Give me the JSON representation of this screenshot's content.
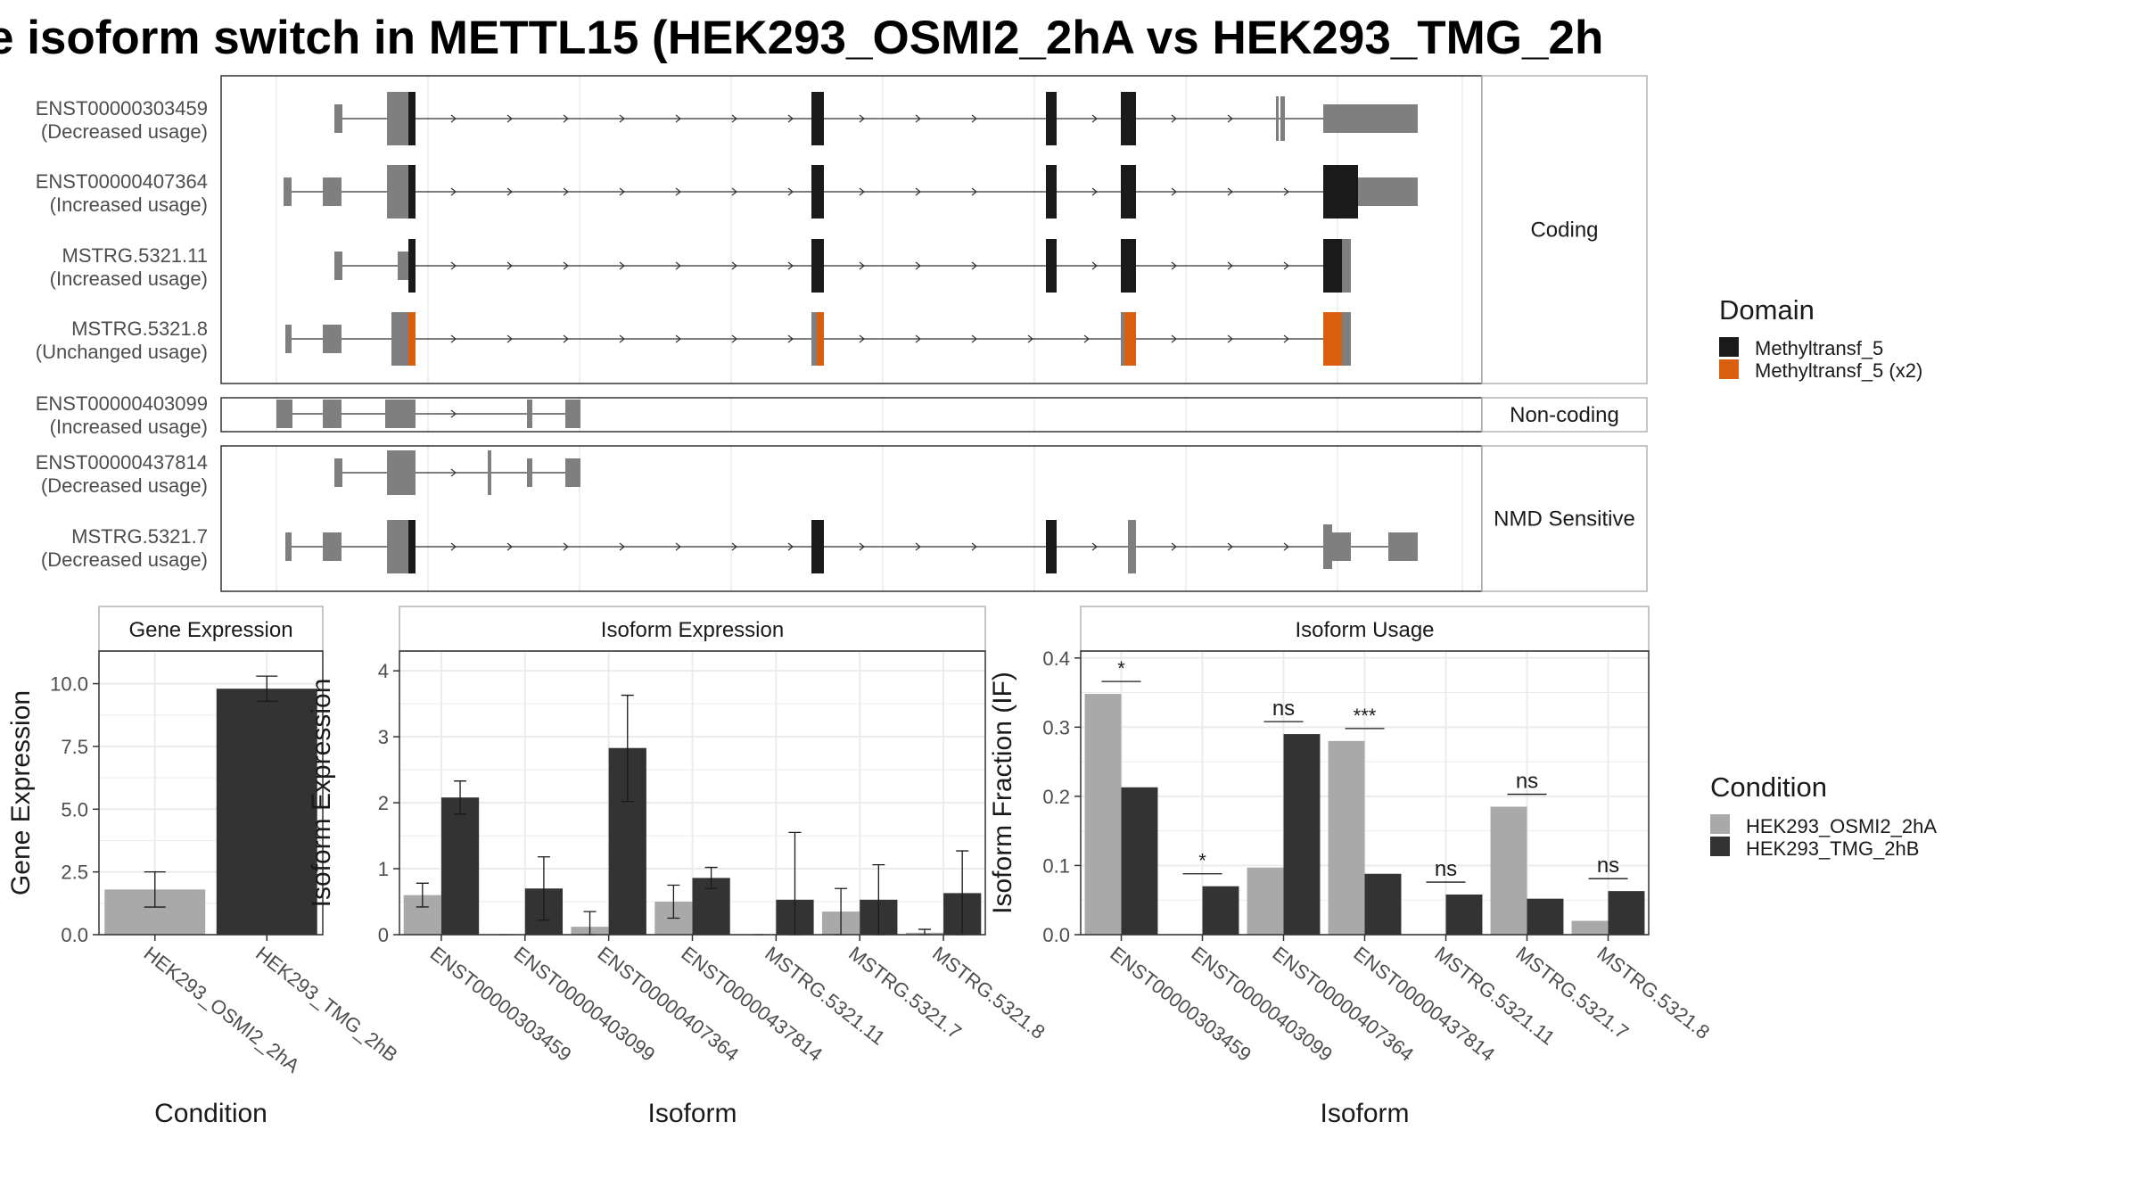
{
  "title": "e isoform switch in METTL15 (HEK293_OSMI2_2hA vs HEK293_TMG_2h",
  "colors": {
    "condition_a": "#a9a9a9",
    "condition_b": "#333333",
    "domain_methyltransf": "#1a1a1a",
    "domain_methyltransf_x2": "#d95f0e",
    "exon": "#7f7f7f",
    "grid": "#ebebeb",
    "panel_border": "#333333",
    "strip_border": "#b3b3b3"
  },
  "structure_panel": {
    "groups": [
      {
        "label": "Coding",
        "isoforms": [
          {
            "name": "ENST00000303459",
            "status": "(Decreased usage)"
          },
          {
            "name": "ENST00000407364",
            "status": "(Increased usage)"
          },
          {
            "name": "MSTRG.5321.11",
            "status": "(Increased usage)"
          },
          {
            "name": "MSTRG.5321.8",
            "status": "(Unchanged usage)"
          }
        ]
      },
      {
        "label": "Non-coding",
        "isoforms": [
          {
            "name": "ENST00000403099",
            "status": "(Increased usage)"
          }
        ]
      },
      {
        "label": "NMD Sensitive",
        "isoforms": [
          {
            "name": "ENST00000437814",
            "status": "(Decreased usage)"
          },
          {
            "name": "MSTRG.5321.7",
            "status": "(Decreased usage)"
          }
        ]
      }
    ],
    "domain_legend": {
      "title": "Domain",
      "entries": [
        {
          "label": "Methyltransf_5",
          "color": "#1a1a1a"
        },
        {
          "label": "Methyltransf_5 (x2)",
          "color": "#d95f0e"
        }
      ]
    }
  },
  "condition_legend": {
    "title": "Condition",
    "entries": [
      {
        "label": "HEK293_OSMI2_2hA",
        "color": "#a9a9a9"
      },
      {
        "label": "HEK293_TMG_2hB",
        "color": "#333333"
      }
    ]
  },
  "chart_data": [
    {
      "type": "bar",
      "title": "Gene Expression",
      "xlabel": "Condition",
      "ylabel": "Gene Expression",
      "ylim": [
        0,
        11.3
      ],
      "yticks": [
        "0.0",
        "2.5",
        "5.0",
        "7.5",
        "10.0"
      ],
      "categories": [
        "HEK293_OSMI2_2hA",
        "HEK293_TMG_2hB"
      ],
      "values": [
        1.8,
        9.8
      ],
      "error_low": [
        1.1,
        9.3
      ],
      "error_high": [
        2.5,
        10.3
      ]
    },
    {
      "type": "bar",
      "title": "Isoform Expression",
      "xlabel": "Isoform",
      "ylabel": "Isoform Expression",
      "ylim": [
        0,
        4.3
      ],
      "yticks": [
        "0",
        "1",
        "2",
        "3",
        "4"
      ],
      "categories": [
        "ENST00000303459",
        "ENST00000403099",
        "ENST00000407364",
        "ENST00000437814",
        "MSTRG.5321.11",
        "MSTRG.5321.7",
        "MSTRG.5321.8"
      ],
      "series": [
        {
          "name": "HEK293_OSMI2_2hA",
          "values": [
            0.6,
            0.0,
            0.12,
            0.5,
            0.0,
            0.35,
            0.03
          ],
          "error_low": [
            0.42,
            0.0,
            0.0,
            0.25,
            0.0,
            0.0,
            0.0
          ],
          "error_high": [
            0.78,
            0.0,
            0.35,
            0.75,
            0.0,
            0.7,
            0.08
          ]
        },
        {
          "name": "HEK293_TMG_2hB",
          "values": [
            2.08,
            0.7,
            2.83,
            0.86,
            0.53,
            0.53,
            0.63
          ],
          "error_low": [
            1.83,
            0.22,
            2.02,
            0.7,
            0.0,
            0.0,
            0.0
          ],
          "error_high": [
            2.33,
            1.18,
            3.63,
            1.02,
            1.55,
            1.06,
            1.27
          ]
        }
      ]
    },
    {
      "type": "bar",
      "title": "Isoform Usage",
      "xlabel": "Isoform",
      "ylabel": "Isoform Fraction (IF)",
      "ylim": [
        0,
        0.41
      ],
      "yticks": [
        "0.0",
        "0.1",
        "0.2",
        "0.3",
        "0.4"
      ],
      "categories": [
        "ENST00000303459",
        "ENST00000403099",
        "ENST00000407364",
        "ENST00000437814",
        "MSTRG.5321.11",
        "MSTRG.5321.7",
        "MSTRG.5321.8"
      ],
      "series": [
        {
          "name": "HEK293_OSMI2_2hA",
          "values": [
            0.348,
            0.0,
            0.097,
            0.28,
            0.0,
            0.185,
            0.02
          ]
        },
        {
          "name": "HEK293_TMG_2hB",
          "values": [
            0.213,
            0.07,
            0.29,
            0.088,
            0.058,
            0.052,
            0.063
          ]
        }
      ],
      "significance": [
        "*",
        "*",
        "ns",
        "***",
        "ns",
        "ns",
        "ns"
      ]
    }
  ]
}
